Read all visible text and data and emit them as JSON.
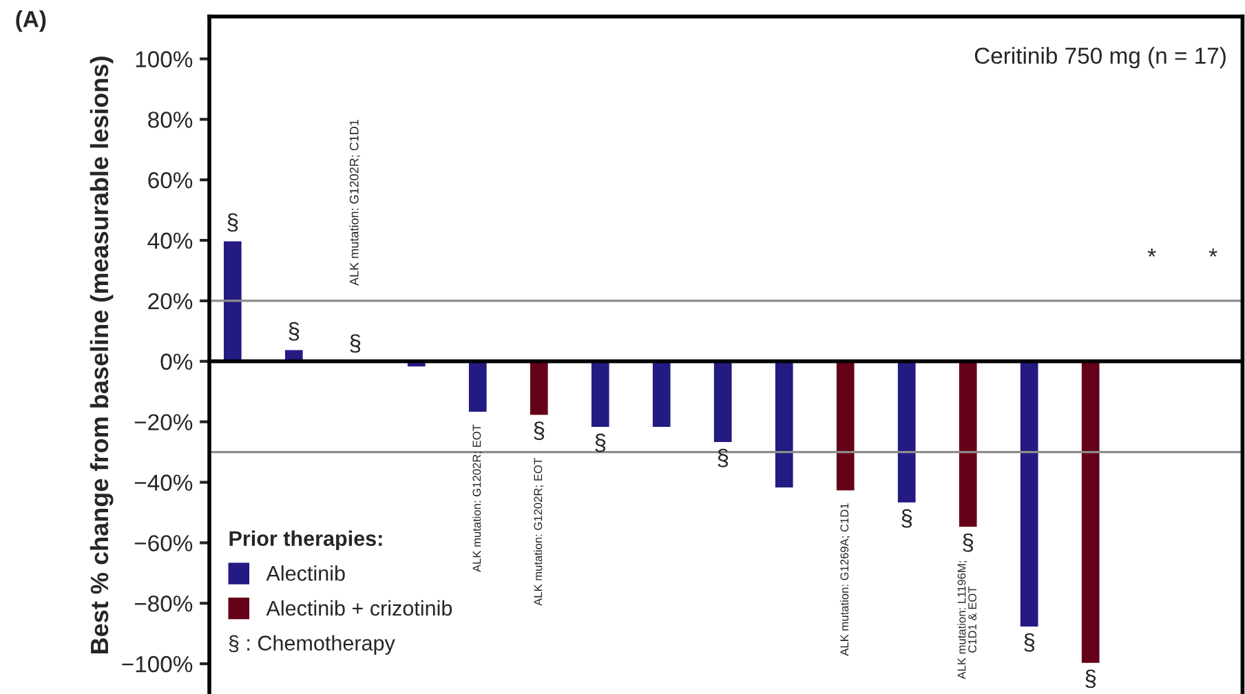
{
  "chart_data": {
    "type": "bar",
    "title": "Ceritinib 750 mg (n = 17)",
    "ylabel": "Best % change from baseline (measurable lesions)",
    "legend_title": "Prior therapies:",
    "categories": [
      null,
      null,
      null,
      null,
      null,
      null,
      null,
      null,
      null,
      null,
      null,
      null,
      null,
      null,
      null,
      null,
      null
    ],
    "series": [
      {
        "name": "Alectinib",
        "color": "#231a82",
        "values": [
          40,
          4,
          null,
          -2,
          -17,
          null,
          -22,
          -22,
          -27,
          -42,
          null,
          -47,
          null,
          -88,
          null,
          null,
          null
        ]
      },
      {
        "name": "Alectinib + crizotinib",
        "color": "#650019",
        "values": [
          null,
          null,
          null,
          null,
          null,
          -18,
          null,
          null,
          null,
          null,
          -43,
          null,
          -55,
          null,
          -100,
          null,
          null
        ]
      }
    ],
    "value_labels": [
      "§",
      "§",
      "§",
      null,
      null,
      "§",
      "§",
      null,
      "§",
      null,
      null,
      "§",
      "§",
      "§",
      "§",
      "*",
      "*"
    ],
    "ylim": [
      -110,
      114
    ],
    "yticks": [
      {
        "value": -100,
        "label": "−100%"
      },
      {
        "value": -80,
        "label": "−80%"
      },
      {
        "value": -60,
        "label": "−60%"
      },
      {
        "value": -40,
        "label": "−40%"
      },
      {
        "value": -20,
        "label": "−20%"
      },
      {
        "value": 0,
        "label": "0%"
      },
      {
        "value": 20,
        "label": "20%"
      },
      {
        "value": 40,
        "label": "40%"
      },
      {
        "value": 60,
        "label": "60%"
      },
      {
        "value": 80,
        "label": "80%"
      },
      {
        "value": 100,
        "label": "100%"
      }
    ],
    "ref_lines": [
      {
        "axis": "y",
        "value": 20,
        "color": "#8c8c8c"
      },
      {
        "axis": "y",
        "value": -30,
        "color": "#8c8c8c"
      },
      {
        "axis": "y",
        "value": 0,
        "color": "#000000"
      }
    ],
    "annotations": [
      "(A)",
      "§ : Chemotherapy",
      "ALK mutation: G1202R; C1D1",
      "ALK mutation: G1202R; EOT",
      "ALK mutation: G1202R; EOT",
      "ALK mutation: G1269A; C1D1",
      "ALK mutation: L1196M;\nC1D1 & EOT"
    ],
    "legend": "bottom left",
    "grid": false,
    "tick_labels": "y"
  }
}
